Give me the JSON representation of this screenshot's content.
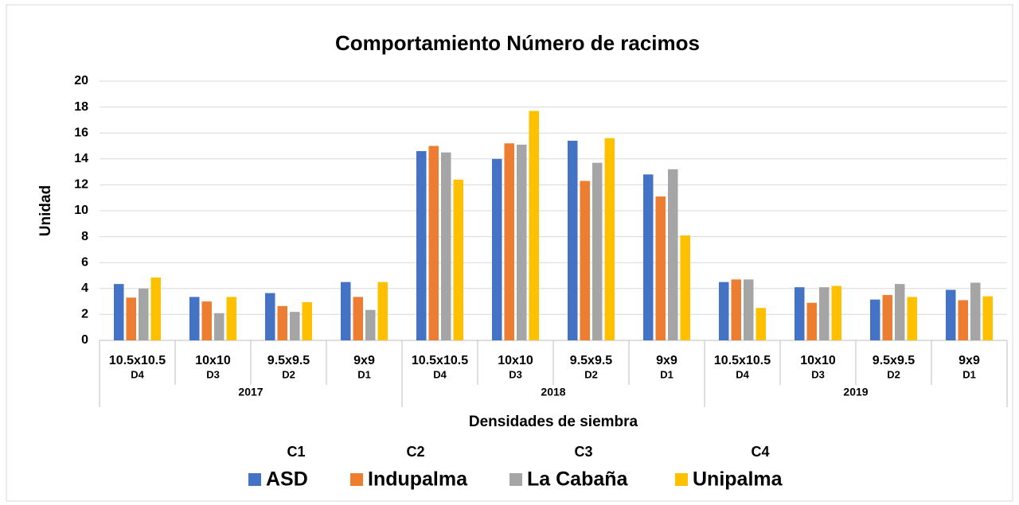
{
  "chart_data": {
    "type": "bar",
    "title": "Comportamiento Número de racimos",
    "y_label": "Unidad",
    "x_label": "Densidades de siembra",
    "categories": [
      "10.5x10.5",
      "10x10",
      "9.5x9.5",
      "9x9",
      "10.5x10.5",
      "10x10",
      "9.5x9.5",
      "9x9",
      "10.5x10.5",
      "10x10",
      "9.5x9.5",
      "9x9"
    ],
    "sublabels": [
      "D4",
      "D3",
      "D2",
      "D1",
      "D4",
      "D3",
      "D2",
      "D1",
      "D4",
      "D3",
      "D2",
      "D1"
    ],
    "groups": [
      "2017",
      "2018",
      "2019"
    ],
    "series": [
      {
        "name": "ASD",
        "code": "C1",
        "color": "#4472c4",
        "values": [
          4.35,
          3.35,
          3.65,
          4.5,
          14.6,
          14.0,
          15.4,
          12.8,
          4.5,
          4.1,
          3.15,
          3.9
        ]
      },
      {
        "name": "Indupalma",
        "code": "C2",
        "color": "#ed7d31",
        "values": [
          3.3,
          3.0,
          2.65,
          3.35,
          15.0,
          15.2,
          12.3,
          11.1,
          4.7,
          2.9,
          3.5,
          3.1
        ]
      },
      {
        "name": "La Cabaña",
        "code": "C3",
        "color": "#a5a5a5",
        "values": [
          4.0,
          2.1,
          2.2,
          2.35,
          14.5,
          15.1,
          13.7,
          13.2,
          4.7,
          4.1,
          4.35,
          4.45
        ]
      },
      {
        "name": "Unipalma",
        "code": "C4",
        "color": "#ffc000",
        "values": [
          4.85,
          3.35,
          2.95,
          4.5,
          12.4,
          17.7,
          15.6,
          8.1,
          2.5,
          4.2,
          3.35,
          3.4
        ]
      }
    ],
    "ylim": [
      0,
      20
    ],
    "yticks": [
      0,
      2,
      4,
      6,
      8,
      10,
      12,
      14,
      16,
      18,
      20
    ],
    "grid": true
  }
}
